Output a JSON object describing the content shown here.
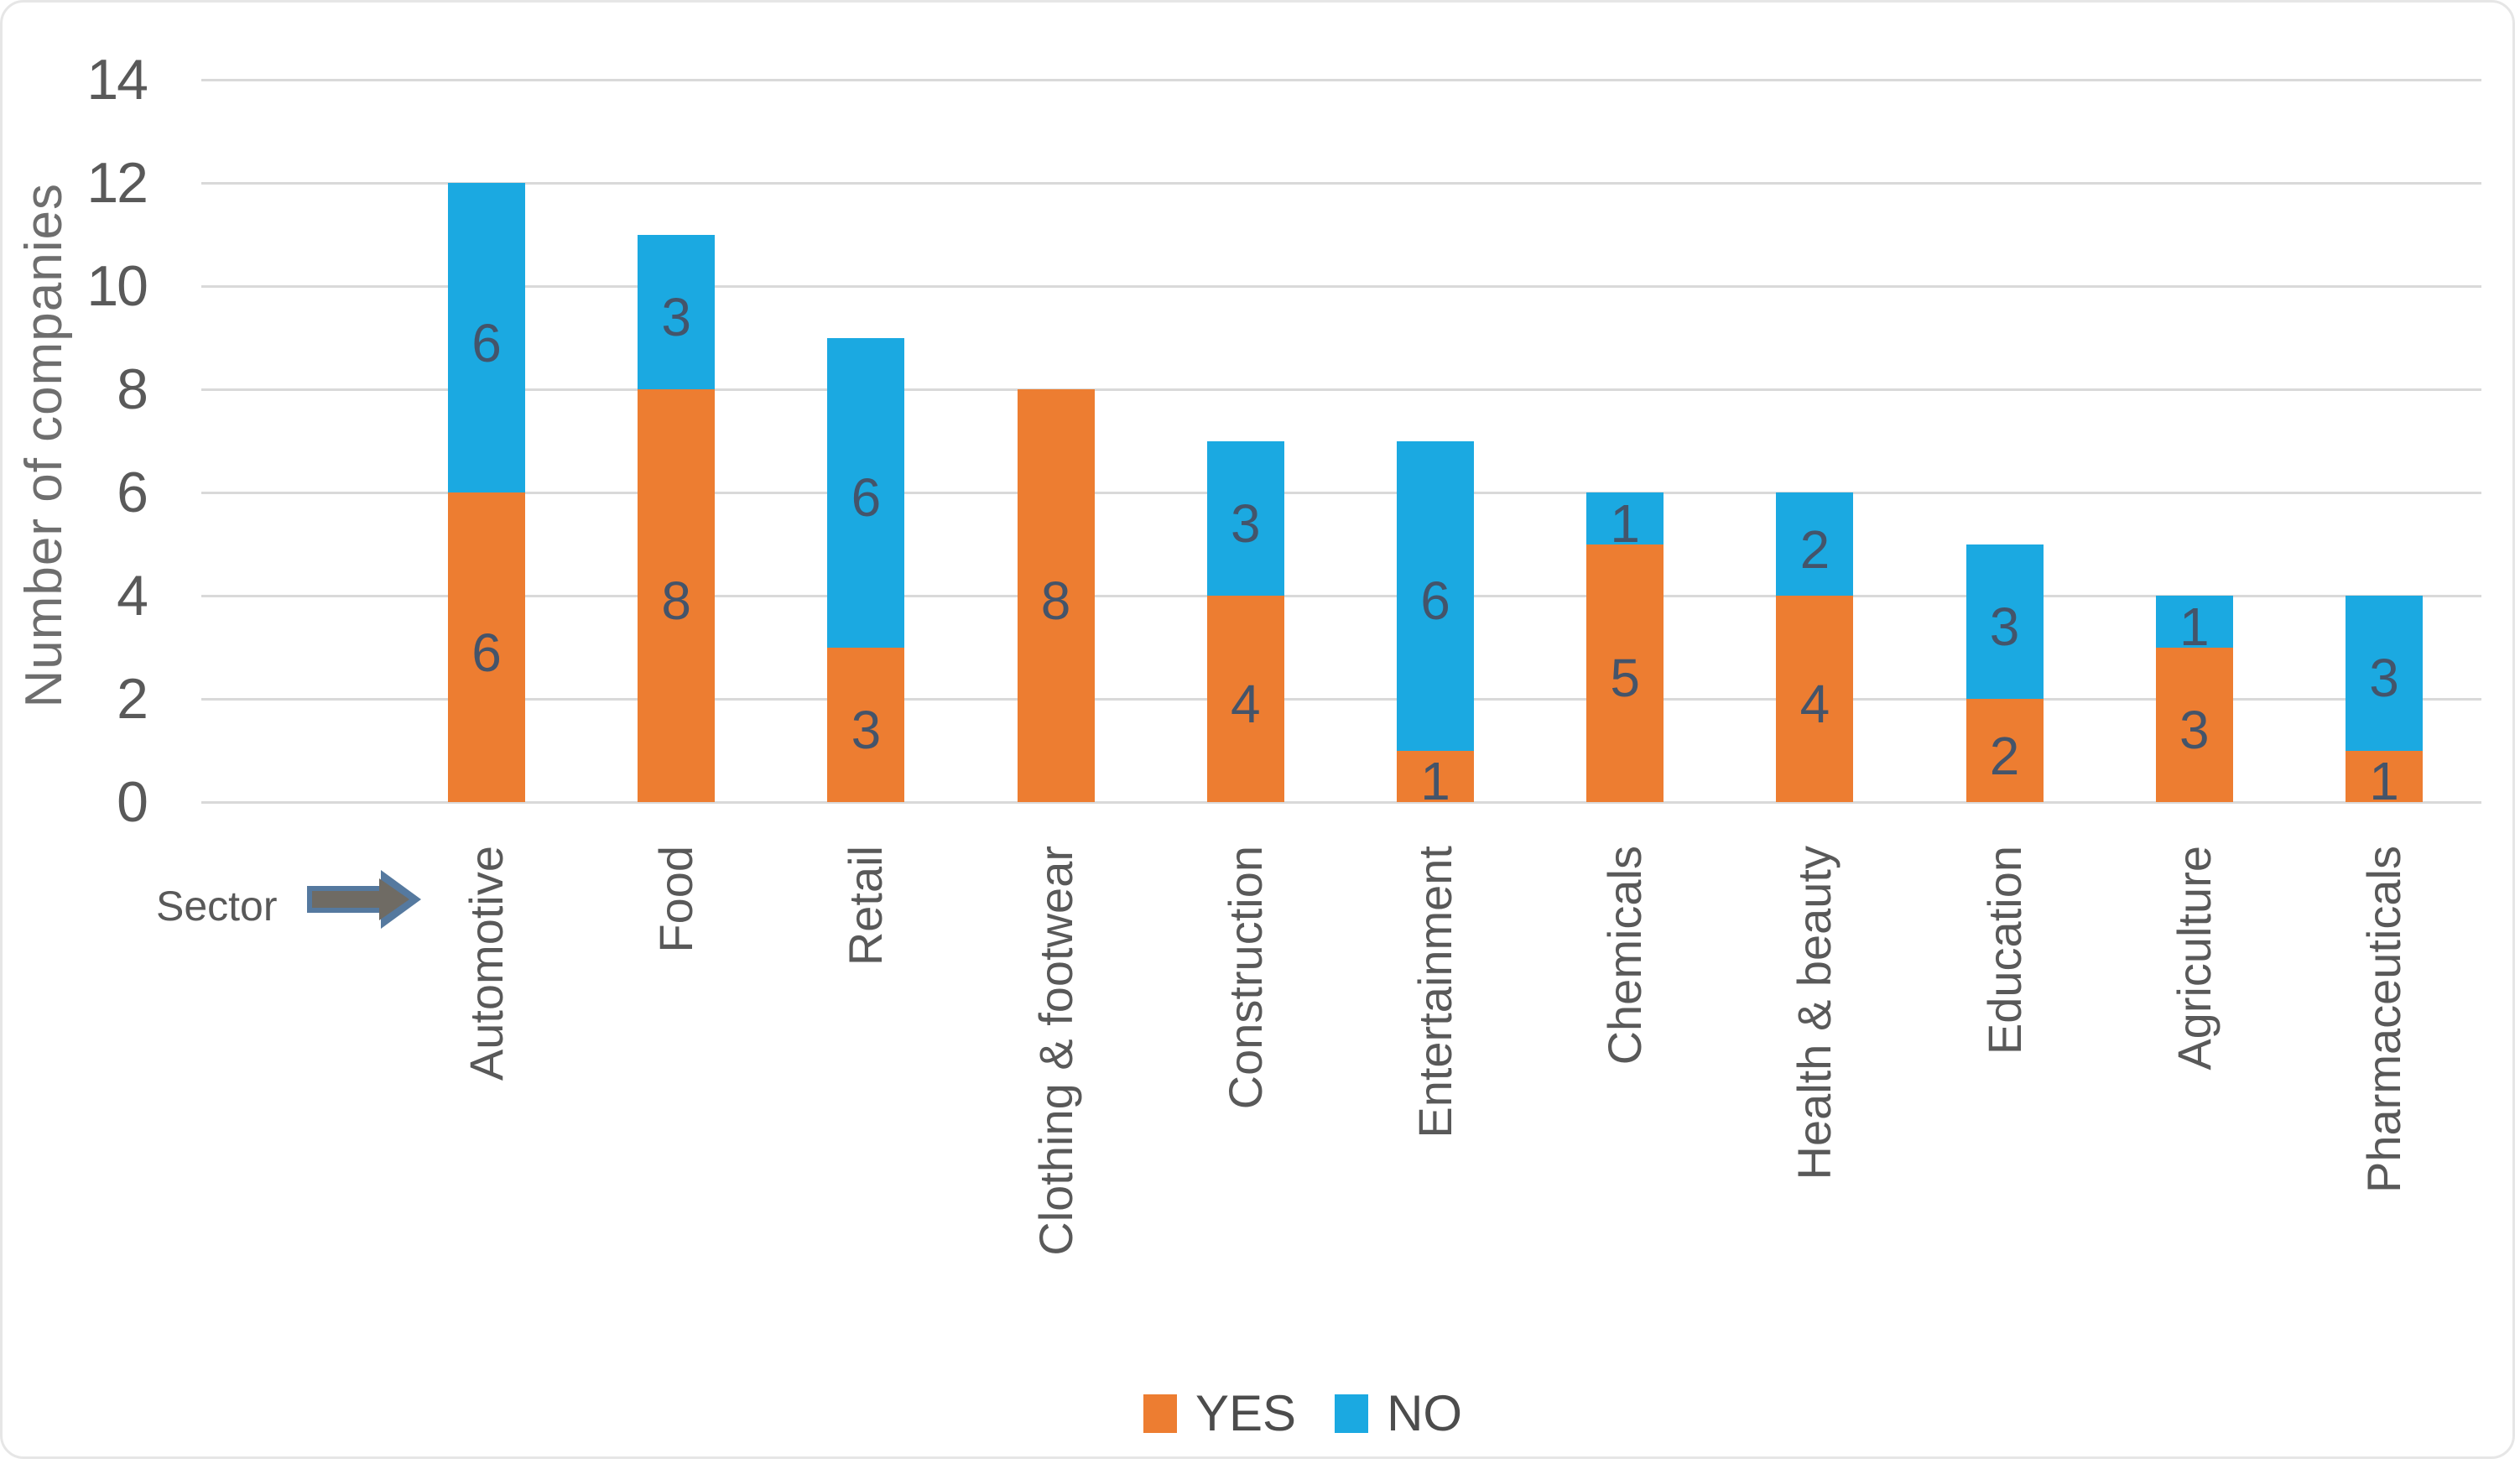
{
  "chart_data": {
    "type": "bar",
    "stacked": true,
    "ylabel": "Number of companies",
    "xlabel": "Sector",
    "ylim": [
      0,
      14
    ],
    "ytick_step": 2,
    "grid": true,
    "legend_position": "bottom-center",
    "categories": [
      "Automotive",
      "Food",
      "Retail",
      "Clothing & footwear",
      "Construction",
      "Entertainment",
      "Chemicals",
      "Health & beauty",
      "Education",
      "Agriculture",
      "Pharmaceuticals"
    ],
    "series": [
      {
        "name": "YES",
        "color": "#ED7D31",
        "values": [
          6,
          8,
          3,
          8,
          4,
          1,
          5,
          4,
          2,
          3,
          1
        ]
      },
      {
        "name": "NO",
        "color": "#1BA9E1",
        "values": [
          6,
          3,
          6,
          0,
          3,
          6,
          1,
          2,
          3,
          1,
          3
        ]
      }
    ],
    "totals": [
      12,
      11,
      9,
      8,
      7,
      7,
      6,
      6,
      5,
      4,
      4
    ]
  },
  "ui": {
    "sector_pointer_label": "Sector",
    "colors": {
      "gridline": "#d9d9d9",
      "axis_text": "#595959",
      "data_label": "#44546a",
      "arrow_border": "#55799f",
      "arrow_fill": "#6f6b64"
    }
  }
}
